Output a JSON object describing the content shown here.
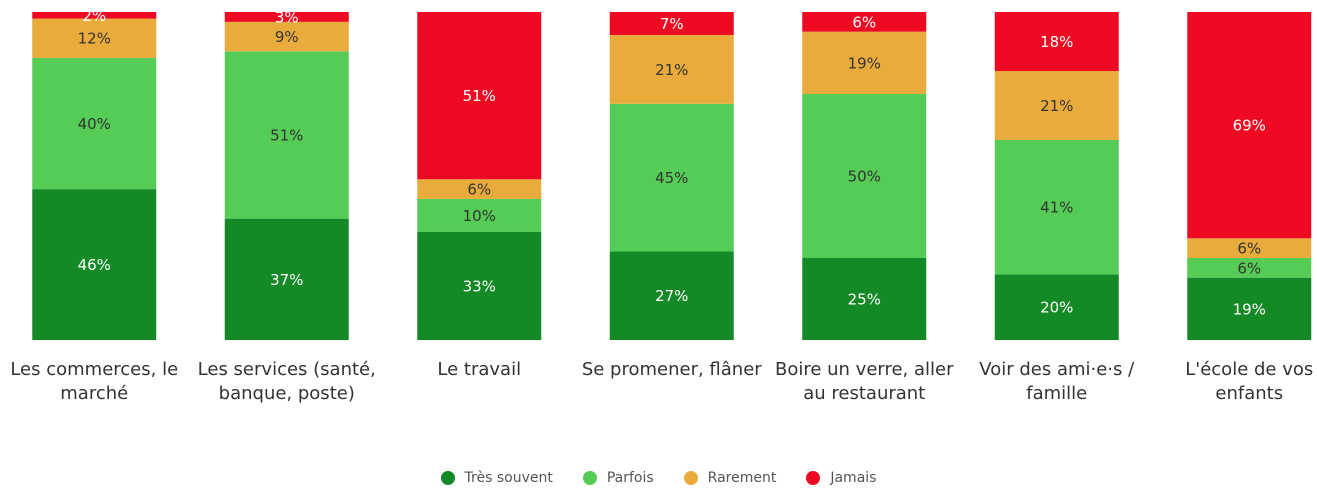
{
  "chart_data": {
    "type": "stacked_bar",
    "categories": [
      "Les commerces, le marché",
      "Les services (santé, banque, poste)",
      "Le travail",
      "Se promener, flâner",
      "Boire un verre, aller au restaurant",
      "Voir des ami·e·s / famille",
      "L'école de vos enfants"
    ],
    "series": [
      {
        "name": "Très souvent",
        "color": "#138a26",
        "label_color": "#ffffff",
        "values": [
          46,
          37,
          33,
          27,
          25,
          20,
          19
        ],
        "value_labels": [
          "46%",
          "37%",
          "33%",
          "27%",
          "25%",
          "20%",
          "19%"
        ]
      },
      {
        "name": "Parfois",
        "color": "#55cc55",
        "label_color": "#333333",
        "values": [
          40,
          51,
          10,
          45,
          50,
          41,
          6
        ],
        "value_labels": [
          "40%",
          "51%",
          "10%",
          "45%",
          "50%",
          "41%",
          "6%"
        ]
      },
      {
        "name": "Rarement",
        "color": "#e8ab3c",
        "label_color": "#333333",
        "values": [
          12,
          9,
          6,
          21,
          19,
          21,
          6
        ],
        "value_labels": [
          "12%",
          "9%",
          "6%",
          "21%",
          "19%",
          "21%",
          "6%"
        ]
      },
      {
        "name": "Jamais",
        "color": "#ee0a22",
        "label_color": "#ffffff",
        "values": [
          2,
          3,
          51,
          7,
          6,
          18,
          69
        ],
        "value_labels": [
          "2%",
          "3%",
          "51%",
          "7%",
          "6%",
          "18%",
          "69%"
        ]
      }
    ],
    "ylim": [
      0,
      100
    ],
    "legend": "bottom"
  }
}
